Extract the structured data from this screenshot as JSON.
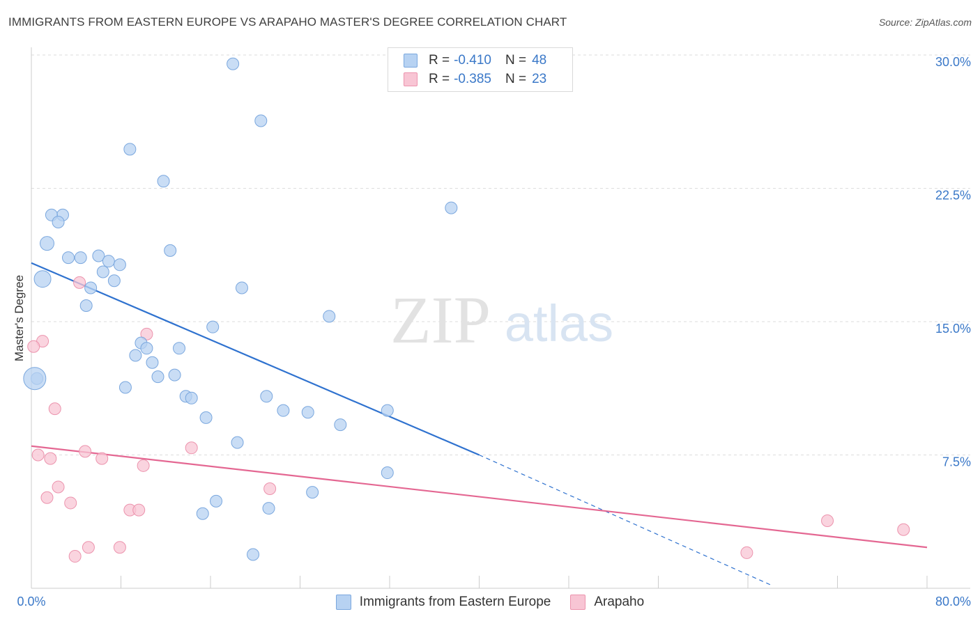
{
  "title": "IMMIGRANTS FROM EASTERN EUROPE VS ARAPAHO MASTER'S DEGREE CORRELATION CHART",
  "source": "Source: ZipAtlas.com",
  "watermark": {
    "zip": "ZIP",
    "atlas": "atlas"
  },
  "legend": {
    "rows": [
      {
        "r_label": "R =",
        "r_value": "-0.410",
        "n_label": "N =",
        "n_value": "48"
      },
      {
        "r_label": "R =",
        "r_value": "-0.385",
        "n_label": "N =",
        "n_value": "23"
      }
    ]
  },
  "bottom_legend": [
    "Immigrants from Eastern Europe",
    "Arapaho"
  ],
  "colors": {
    "blue_fill": "#b7d2f2",
    "blue_stroke": "#7aa7de",
    "blue_line": "#2f72cf",
    "pink_fill": "#f8c5d4",
    "pink_stroke": "#ec93ad",
    "pink_line": "#e46792",
    "tick_label": "#3a78c8",
    "grid": "#dddddd"
  },
  "chart_data": {
    "type": "scatter",
    "title": "IMMIGRANTS FROM EASTERN EUROPE VS ARAPAHO MASTER'S DEGREE CORRELATION CHART",
    "xlabel": "",
    "ylabel": "Master's Degree",
    "xlim": [
      0,
      80
    ],
    "ylim": [
      0,
      30
    ],
    "x_tick_labels": [
      "0.0%",
      "80.0%"
    ],
    "y_ticks": [
      7.5,
      15.0,
      22.5,
      30.0
    ],
    "y_tick_labels": [
      "7.5%",
      "15.0%",
      "22.5%",
      "30.0%"
    ],
    "grid": true,
    "legend_position": "top-center",
    "series": [
      {
        "name": "Immigrants from Eastern Europe",
        "r": -0.41,
        "n": 48,
        "trend": {
          "x": [
            0,
            40
          ],
          "y": [
            18.3,
            7.5
          ],
          "dashed_to": [
            66,
            0.2
          ]
        },
        "points": [
          [
            18,
            29.5
          ],
          [
            20.5,
            26.3
          ],
          [
            8.8,
            24.7
          ],
          [
            11.8,
            22.9
          ],
          [
            2.8,
            21.0
          ],
          [
            1.8,
            21.0
          ],
          [
            2.4,
            20.6
          ],
          [
            37.5,
            21.4
          ],
          [
            1.4,
            19.4
          ],
          [
            12.4,
            19.0
          ],
          [
            3.3,
            18.6
          ],
          [
            4.4,
            18.6
          ],
          [
            6.0,
            18.7
          ],
          [
            6.9,
            18.4
          ],
          [
            7.9,
            18.2
          ],
          [
            6.4,
            17.8
          ],
          [
            7.4,
            17.3
          ],
          [
            1.0,
            17.4
          ],
          [
            5.3,
            16.9
          ],
          [
            18.8,
            16.9
          ],
          [
            4.9,
            15.9
          ],
          [
            26.6,
            15.3
          ],
          [
            16.2,
            14.7
          ],
          [
            9.8,
            13.8
          ],
          [
            10.3,
            13.5
          ],
          [
            13.2,
            13.5
          ],
          [
            9.3,
            13.1
          ],
          [
            10.8,
            12.7
          ],
          [
            11.3,
            11.9
          ],
          [
            12.8,
            12.0
          ],
          [
            0.5,
            11.8
          ],
          [
            8.4,
            11.3
          ],
          [
            13.8,
            10.8
          ],
          [
            14.3,
            10.7
          ],
          [
            21.0,
            10.8
          ],
          [
            31.8,
            10.0
          ],
          [
            22.5,
            10.0
          ],
          [
            24.7,
            9.9
          ],
          [
            15.6,
            9.6
          ],
          [
            27.6,
            9.2
          ],
          [
            18.4,
            8.2
          ],
          [
            31.8,
            6.5
          ],
          [
            25.1,
            5.4
          ],
          [
            16.5,
            4.9
          ],
          [
            21.2,
            4.5
          ],
          [
            15.3,
            4.2
          ],
          [
            19.8,
            1.9
          ],
          [
            0.3,
            11.8
          ]
        ]
      },
      {
        "name": "Arapaho",
        "r": -0.385,
        "n": 23,
        "trend": {
          "x": [
            0,
            80
          ],
          "y": [
            8.0,
            2.3
          ]
        },
        "points": [
          [
            4.3,
            17.2
          ],
          [
            1.0,
            13.9
          ],
          [
            0.2,
            13.6
          ],
          [
            10.3,
            14.3
          ],
          [
            2.1,
            10.1
          ],
          [
            14.3,
            7.9
          ],
          [
            4.8,
            7.7
          ],
          [
            0.6,
            7.5
          ],
          [
            1.7,
            7.3
          ],
          [
            6.3,
            7.3
          ],
          [
            10.0,
            6.9
          ],
          [
            2.4,
            5.7
          ],
          [
            21.3,
            5.6
          ],
          [
            1.4,
            5.1
          ],
          [
            3.5,
            4.8
          ],
          [
            8.8,
            4.4
          ],
          [
            9.6,
            4.4
          ],
          [
            5.1,
            2.3
          ],
          [
            7.9,
            2.3
          ],
          [
            3.9,
            1.8
          ],
          [
            71.1,
            3.8
          ],
          [
            77.9,
            3.3
          ],
          [
            63.9,
            2.0
          ]
        ]
      }
    ]
  }
}
